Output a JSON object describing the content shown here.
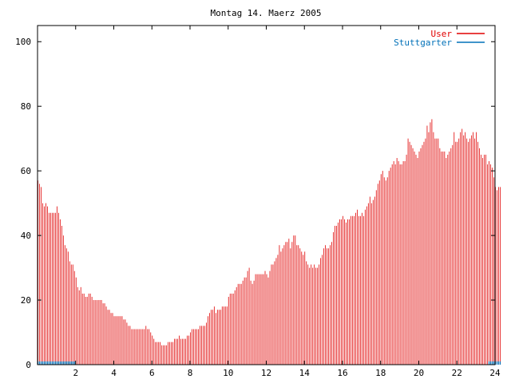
{
  "chart_data": {
    "type": "bar",
    "title": "Montag 14. Maerz 2005",
    "xlabel": "",
    "ylabel": "",
    "xlim": [
      0,
      24
    ],
    "ylim": [
      0,
      105
    ],
    "xticks": [
      2,
      4,
      6,
      8,
      10,
      12,
      14,
      16,
      18,
      20,
      22,
      24
    ],
    "yticks": [
      0,
      20,
      40,
      60,
      80,
      100
    ],
    "grid": false,
    "legend_position": "top-right",
    "bar_interval_minutes": 5,
    "series": [
      {
        "name": "User",
        "color": "#e00000",
        "values": [
          57,
          56,
          55,
          50,
          49,
          50,
          49,
          47,
          47,
          47,
          47,
          47,
          49,
          47,
          45,
          43,
          40,
          37,
          36,
          35,
          32,
          31,
          31,
          29,
          27,
          24,
          23,
          24,
          22,
          22,
          21,
          21,
          22,
          22,
          21,
          20,
          20,
          20,
          20,
          20,
          20,
          19,
          19,
          18,
          17,
          17,
          16,
          16,
          15,
          15,
          15,
          15,
          15,
          15,
          14,
          14,
          13,
          12,
          12,
          11,
          11,
          11,
          11,
          11,
          11,
          11,
          11,
          11,
          12,
          11,
          11,
          10,
          9,
          8,
          7,
          7,
          7,
          7,
          6,
          6,
          6,
          6,
          7,
          7,
          7,
          7,
          8,
          8,
          8,
          9,
          8,
          8,
          8,
          8,
          9,
          9,
          10,
          11,
          11,
          11,
          11,
          11,
          12,
          12,
          12,
          12,
          13,
          15,
          16,
          17,
          17,
          18,
          16,
          17,
          17,
          17,
          18,
          18,
          18,
          18,
          21,
          22,
          22,
          22,
          23,
          24,
          25,
          25,
          25,
          26,
          27,
          27,
          29,
          30,
          26,
          25,
          26,
          28,
          28,
          28,
          28,
          28,
          28,
          29,
          28,
          27,
          29,
          31,
          31,
          32,
          33,
          34,
          37,
          35,
          36,
          37,
          38,
          38,
          39,
          36,
          38,
          40,
          40,
          37,
          37,
          36,
          35,
          34,
          35,
          32,
          31,
          30,
          31,
          30,
          31,
          30,
          30,
          31,
          33,
          34,
          36,
          37,
          36,
          36,
          37,
          38,
          41,
          43,
          43,
          44,
          45,
          45,
          46,
          45,
          44,
          45,
          45,
          46,
          46,
          46,
          47,
          48,
          46,
          46,
          47,
          46,
          48,
          49,
          50,
          52,
          50,
          51,
          52,
          54,
          56,
          57,
          59,
          60,
          58,
          57,
          58,
          60,
          61,
          62,
          63,
          62,
          64,
          63,
          62,
          62,
          63,
          63,
          65,
          70,
          69,
          68,
          67,
          66,
          65,
          64,
          66,
          67,
          68,
          69,
          70,
          74,
          72,
          75,
          76,
          72,
          70,
          70,
          70,
          67,
          66,
          66,
          66,
          64,
          65,
          66,
          67,
          68,
          72,
          69,
          69,
          70,
          72,
          73,
          71,
          72,
          70,
          69,
          70,
          71,
          72,
          70,
          72,
          69,
          67,
          65,
          64,
          65,
          65,
          62,
          63,
          62,
          61,
          58,
          55,
          54,
          55,
          55
        ]
      },
      {
        "name": "Stuttgarter",
        "color": "#0070b8",
        "values": [
          1,
          1,
          1,
          1,
          1,
          1,
          1,
          1,
          1,
          1,
          1,
          1,
          1,
          1,
          1,
          1,
          1,
          1,
          1,
          1,
          1,
          1,
          1,
          1,
          0,
          0,
          0,
          0,
          0,
          0,
          0,
          0,
          0,
          0,
          0,
          0,
          0,
          0,
          0,
          0,
          0,
          0,
          0,
          0,
          0,
          0,
          0,
          0,
          0,
          0,
          0,
          0,
          0,
          0,
          0,
          0,
          0,
          0,
          0,
          0,
          0,
          0,
          0,
          0,
          0,
          0,
          0,
          0,
          0,
          0,
          0,
          0,
          0,
          0,
          0,
          0,
          0,
          0,
          0,
          0,
          0,
          0,
          0,
          0,
          0,
          0,
          0,
          0,
          0,
          0,
          0,
          0,
          0,
          0,
          0,
          0,
          0,
          0,
          0,
          0,
          0,
          0,
          0,
          0,
          0,
          0,
          0,
          0,
          0,
          0,
          0,
          0,
          0,
          0,
          0,
          0,
          0,
          0,
          0,
          0,
          0,
          0,
          0,
          0,
          0,
          0,
          0,
          0,
          0,
          0,
          0,
          0,
          0,
          0,
          0,
          0,
          0,
          0,
          0,
          0,
          0,
          0,
          0,
          0,
          0,
          0,
          0,
          0,
          0,
          0,
          0,
          0,
          0,
          0,
          0,
          0,
          0,
          0,
          0,
          0,
          0,
          0,
          0,
          0,
          0,
          0,
          0,
          0,
          0,
          0,
          0,
          0,
          0,
          0,
          0,
          0,
          0,
          0,
          0,
          0,
          0,
          0,
          0,
          0,
          0,
          0,
          0,
          0,
          0,
          0,
          0,
          0,
          0,
          0,
          0,
          0,
          0,
          0,
          0,
          0,
          0,
          0,
          0,
          0,
          0,
          0,
          0,
          0,
          0,
          0,
          0,
          0,
          0,
          0,
          0,
          0,
          0,
          0,
          0,
          0,
          0,
          0,
          0,
          0,
          0,
          0,
          0,
          0,
          0,
          0,
          0,
          0,
          0,
          0,
          0,
          0,
          0,
          0,
          0,
          0,
          0,
          0,
          0,
          0,
          0,
          0,
          0,
          0,
          0,
          0,
          0,
          0,
          0,
          0,
          0,
          0,
          0,
          0,
          0,
          0,
          0,
          0,
          0,
          0,
          0,
          0,
          0,
          0,
          0,
          0,
          0,
          0,
          0,
          0,
          0,
          0,
          0,
          0,
          0,
          0,
          0,
          0,
          0,
          0,
          1,
          1,
          1,
          1,
          1,
          1,
          1,
          1
        ]
      }
    ]
  }
}
